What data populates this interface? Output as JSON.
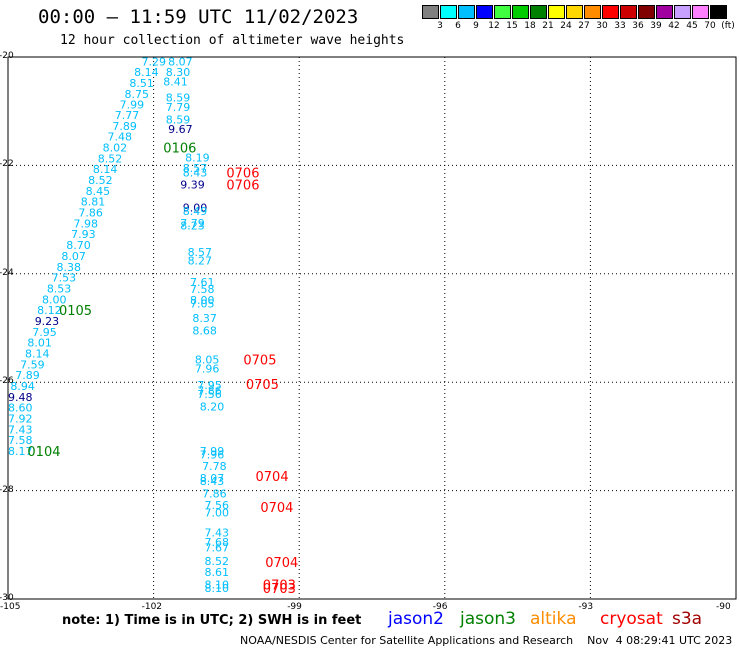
{
  "header": {
    "title": "00:00 – 11:59 UTC 11/02/2023",
    "subtitle": "12 hour collection of altimeter wave heights"
  },
  "legend": {
    "colors": [
      "#808080",
      "#00ffff",
      "#00bfff",
      "#0000ff",
      "#40ff40",
      "#00cc00",
      "#008000",
      "#ffff00",
      "#ffd700",
      "#ff8c00",
      "#ff0000",
      "#cc0000",
      "#800000",
      "#a000a0",
      "#c8a0ff",
      "#ff80ff",
      "#000000"
    ],
    "labels": [
      "3",
      "6",
      "9",
      "12",
      "15",
      "18",
      "21",
      "24",
      "27",
      "30",
      "33",
      "36",
      "39",
      "42",
      "45",
      "70",
      "(ft)"
    ]
  },
  "chart_data": {
    "type": "scatter",
    "x_ticks": [
      "-105",
      "-102",
      "-99",
      "-96",
      "-93",
      "-90"
    ],
    "y_ticks": [
      "-20",
      "-22",
      "-24",
      "-26",
      "-28",
      "-30"
    ],
    "xlim": [
      -105,
      -90
    ],
    "ylim": [
      -30,
      -20
    ],
    "points": [
      {
        "x": -102.25,
        "y": -20.08,
        "label": "7.29",
        "color": "#00bfff"
      },
      {
        "x": -101.7,
        "y": -20.08,
        "label": "8.07",
        "color": "#00bfff"
      },
      {
        "x": -102.4,
        "y": -20.28,
        "label": "8.14",
        "color": "#00bfff"
      },
      {
        "x": -101.75,
        "y": -20.28,
        "label": "8.30",
        "color": "#00bfff"
      },
      {
        "x": -102.5,
        "y": -20.48,
        "label": "8.51",
        "color": "#00bfff"
      },
      {
        "x": -101.8,
        "y": -20.45,
        "label": "8.41",
        "color": "#00bfff"
      },
      {
        "x": -102.6,
        "y": -20.68,
        "label": "8.75",
        "color": "#00bfff"
      },
      {
        "x": -102.7,
        "y": -20.88,
        "label": "7.99",
        "color": "#00bfff"
      },
      {
        "x": -101.75,
        "y": -20.75,
        "label": "8.59",
        "color": "#00bfff"
      },
      {
        "x": -101.75,
        "y": -20.92,
        "label": "7.79",
        "color": "#00bfff"
      },
      {
        "x": -102.8,
        "y": -21.07,
        "label": "7.77",
        "color": "#00bfff"
      },
      {
        "x": -101.75,
        "y": -21.15,
        "label": "8.59",
        "color": "#00bfff"
      },
      {
        "x": -102.85,
        "y": -21.27,
        "label": "7.89",
        "color": "#00bfff"
      },
      {
        "x": -101.7,
        "y": -21.33,
        "label": "9.67",
        "color": "#00008b"
      },
      {
        "x": -102.95,
        "y": -21.47,
        "label": "7.48",
        "color": "#00bfff"
      },
      {
        "x": -103.05,
        "y": -21.67,
        "label": "8.02",
        "color": "#00bfff"
      },
      {
        "x": -101.35,
        "y": -21.85,
        "label": "8.19",
        "color": "#00bfff"
      },
      {
        "x": -103.15,
        "y": -21.87,
        "label": "8.52",
        "color": "#00bfff"
      },
      {
        "x": -101.4,
        "y": -22.05,
        "label": "8.57",
        "color": "#00bfff"
      },
      {
        "x": -101.4,
        "y": -22.13,
        "label": "8.43",
        "color": "#00bfff"
      },
      {
        "x": -103.25,
        "y": -22.07,
        "label": "8.14",
        "color": "#00bfff"
      },
      {
        "x": -103.35,
        "y": -22.27,
        "label": "8.52",
        "color": "#00bfff"
      },
      {
        "x": -101.45,
        "y": -22.35,
        "label": "9.39",
        "color": "#00008b"
      },
      {
        "x": -103.4,
        "y": -22.47,
        "label": "8.45",
        "color": "#00bfff"
      },
      {
        "x": -103.5,
        "y": -22.67,
        "label": "8.81",
        "color": "#00bfff"
      },
      {
        "x": -101.4,
        "y": -22.78,
        "label": "9.00",
        "color": "#00008b"
      },
      {
        "x": -101.4,
        "y": -22.84,
        "label": "8.49",
        "color": "#00bfff"
      },
      {
        "x": -103.55,
        "y": -22.87,
        "label": "7.86",
        "color": "#00bfff"
      },
      {
        "x": -103.65,
        "y": -23.07,
        "label": "7.98",
        "color": "#00bfff"
      },
      {
        "x": -101.45,
        "y": -23.06,
        "label": "7.79",
        "color": "#00bfff"
      },
      {
        "x": -101.45,
        "y": -23.11,
        "label": "8.23",
        "color": "#00bfff"
      },
      {
        "x": -103.7,
        "y": -23.27,
        "label": "7.93",
        "color": "#00bfff"
      },
      {
        "x": -103.8,
        "y": -23.47,
        "label": "8.70",
        "color": "#00bfff"
      },
      {
        "x": -103.9,
        "y": -23.67,
        "label": "8.07",
        "color": "#00bfff"
      },
      {
        "x": -101.3,
        "y": -23.6,
        "label": "8.57",
        "color": "#00bfff"
      },
      {
        "x": -101.3,
        "y": -23.75,
        "label": "8.27",
        "color": "#00bfff"
      },
      {
        "x": -104.0,
        "y": -23.87,
        "label": "8.38",
        "color": "#00bfff"
      },
      {
        "x": -104.1,
        "y": -24.07,
        "label": "7.53",
        "color": "#00bfff"
      },
      {
        "x": -101.25,
        "y": -24.15,
        "label": "7.61",
        "color": "#00bfff"
      },
      {
        "x": -104.2,
        "y": -24.27,
        "label": "8.53",
        "color": "#00bfff"
      },
      {
        "x": -101.25,
        "y": -24.28,
        "label": "7.58",
        "color": "#00bfff"
      },
      {
        "x": -104.3,
        "y": -24.47,
        "label": "8.00",
        "color": "#00bfff"
      },
      {
        "x": -101.25,
        "y": -24.48,
        "label": "8.00",
        "color": "#00bfff"
      },
      {
        "x": -101.25,
        "y": -24.55,
        "label": "7.05",
        "color": "#00bfff"
      },
      {
        "x": -104.4,
        "y": -24.67,
        "label": "8.12",
        "color": "#00bfff"
      },
      {
        "x": -101.2,
        "y": -24.82,
        "label": "8.37",
        "color": "#00bfff"
      },
      {
        "x": -104.45,
        "y": -24.87,
        "label": "9.23",
        "color": "#00008b"
      },
      {
        "x": -104.5,
        "y": -25.07,
        "label": "7.95",
        "color": "#00bfff"
      },
      {
        "x": -101.2,
        "y": -25.05,
        "label": "8.68",
        "color": "#00bfff"
      },
      {
        "x": -104.6,
        "y": -25.27,
        "label": "8.01",
        "color": "#00bfff"
      },
      {
        "x": -104.65,
        "y": -25.47,
        "label": "8.14",
        "color": "#00bfff"
      },
      {
        "x": -101.15,
        "y": -25.58,
        "label": "8.05",
        "color": "#00bfff"
      },
      {
        "x": -104.75,
        "y": -25.67,
        "label": "7.59",
        "color": "#00bfff"
      },
      {
        "x": -101.15,
        "y": -25.75,
        "label": "7.96",
        "color": "#00bfff"
      },
      {
        "x": -104.85,
        "y": -25.87,
        "label": "7.89",
        "color": "#00bfff"
      },
      {
        "x": -104.95,
        "y": -26.07,
        "label": "8.94",
        "color": "#00bfff"
      },
      {
        "x": -101.1,
        "y": -26.05,
        "label": "7.95",
        "color": "#00bfff"
      },
      {
        "x": -101.1,
        "y": -26.15,
        "label": "7.86",
        "color": "#00bfff"
      },
      {
        "x": -101.1,
        "y": -26.22,
        "label": "7.56",
        "color": "#00bfff"
      },
      {
        "x": -105.0,
        "y": -26.27,
        "label": "9.48",
        "color": "#00008b"
      },
      {
        "x": -105.0,
        "y": -26.47,
        "label": "8.60",
        "color": "#00bfff"
      },
      {
        "x": -101.05,
        "y": -26.45,
        "label": "8.20",
        "color": "#00bfff"
      },
      {
        "x": -105.0,
        "y": -26.67,
        "label": "7.92",
        "color": "#00bfff"
      },
      {
        "x": -105.0,
        "y": -26.87,
        "label": "7.43",
        "color": "#00bfff"
      },
      {
        "x": -105.0,
        "y": -27.07,
        "label": "7.58",
        "color": "#00bfff"
      },
      {
        "x": -105.0,
        "y": -27.27,
        "label": "8.17",
        "color": "#00bfff"
      },
      {
        "x": -101.05,
        "y": -27.27,
        "label": "7.99",
        "color": "#00bfff"
      },
      {
        "x": -101.05,
        "y": -27.33,
        "label": "7.96",
        "color": "#00bfff"
      },
      {
        "x": -101.0,
        "y": -27.55,
        "label": "7.78",
        "color": "#00bfff"
      },
      {
        "x": -101.05,
        "y": -27.77,
        "label": "8.07",
        "color": "#00bfff"
      },
      {
        "x": -101.05,
        "y": -27.82,
        "label": "8.43",
        "color": "#00bfff"
      },
      {
        "x": -101.0,
        "y": -28.05,
        "label": "7.86",
        "color": "#00bfff"
      },
      {
        "x": -100.95,
        "y": -28.27,
        "label": "7.56",
        "color": "#00bfff"
      },
      {
        "x": -100.95,
        "y": -28.4,
        "label": "7.00",
        "color": "#00bfff"
      },
      {
        "x": -100.95,
        "y": -28.77,
        "label": "7.43",
        "color": "#00bfff"
      },
      {
        "x": -100.95,
        "y": -28.95,
        "label": "7.68",
        "color": "#00bfff"
      },
      {
        "x": -100.95,
        "y": -29.05,
        "label": "7.67",
        "color": "#00bfff"
      },
      {
        "x": -100.95,
        "y": -29.3,
        "label": "8.52",
        "color": "#00bfff"
      },
      {
        "x": -100.95,
        "y": -29.5,
        "label": "8.61",
        "color": "#00bfff"
      },
      {
        "x": -100.95,
        "y": -29.73,
        "label": "8.10",
        "color": "#00bfff"
      },
      {
        "x": -100.95,
        "y": -29.8,
        "label": "8.10",
        "color": "#00bfff"
      }
    ],
    "passes": [
      {
        "x": -101.8,
        "y": -21.67,
        "label": "0106",
        "color": "#008000"
      },
      {
        "x": -103.95,
        "y": -24.67,
        "label": "0105",
        "color": "#008000"
      },
      {
        "x": -104.6,
        "y": -27.27,
        "label": "0104",
        "color": "#008000"
      },
      {
        "x": -100.5,
        "y": -22.13,
        "label": "0706",
        "color": "#ff0000"
      },
      {
        "x": -100.5,
        "y": -22.35,
        "label": "0706",
        "color": "#ff0000"
      },
      {
        "x": -100.15,
        "y": -25.58,
        "label": "0705",
        "color": "#ff0000"
      },
      {
        "x": -100.1,
        "y": -26.03,
        "label": "0705",
        "color": "#ff0000"
      },
      {
        "x": -99.9,
        "y": -27.73,
        "label": "0704",
        "color": "#ff0000"
      },
      {
        "x": -99.8,
        "y": -28.3,
        "label": "0704",
        "color": "#ff0000"
      },
      {
        "x": -99.7,
        "y": -29.32,
        "label": "0704",
        "color": "#ff0000"
      },
      {
        "x": -99.75,
        "y": -29.73,
        "label": "0703",
        "color": "#ff0000"
      },
      {
        "x": -99.75,
        "y": -29.8,
        "label": "0703",
        "color": "#ff0000"
      }
    ]
  },
  "footer": {
    "note": "note: 1) Time is in UTC; 2) SWH is in feet",
    "satellites": [
      {
        "name": "jason2",
        "color": "#0000ff"
      },
      {
        "name": "jason3",
        "color": "#008000"
      },
      {
        "name": "altika",
        "color": "#ff8c00"
      },
      {
        "name": "cryosat",
        "color": "#ff0000"
      },
      {
        "name": "s3a",
        "color": "#a00000"
      }
    ],
    "credit": "NOAA/NESDIS Center for Satellite Applications and Research    Nov  4 08:29:41 UTC 2023"
  }
}
